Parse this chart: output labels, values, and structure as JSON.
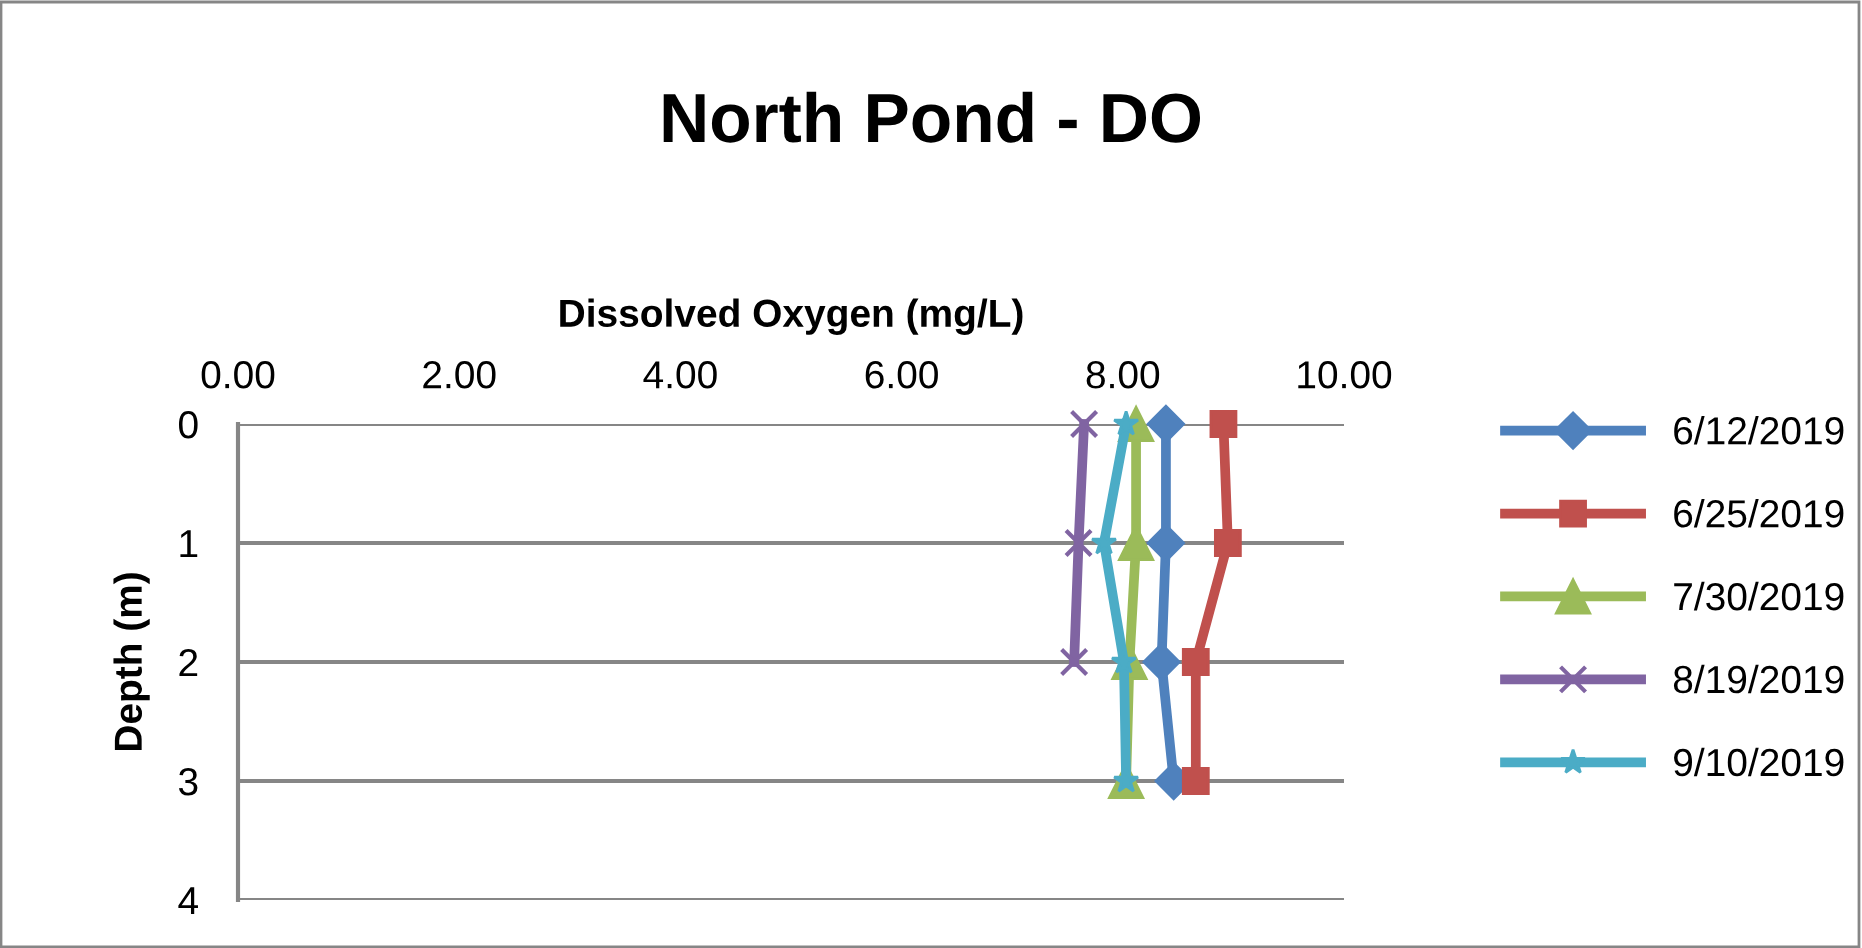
{
  "chart_data": {
    "type": "line",
    "title": "North Pond - DO",
    "xlabel": "Dissolved Oxygen (mg/L)",
    "ylabel": "Depth (m)",
    "xlim": [
      0,
      10
    ],
    "xticks": [
      {
        "value": 0,
        "label": "0.00"
      },
      {
        "value": 2,
        "label": "2.00"
      },
      {
        "value": 4,
        "label": "4.00"
      },
      {
        "value": 6,
        "label": "6.00"
      },
      {
        "value": 8,
        "label": "8.00"
      },
      {
        "value": 10,
        "label": "10.00"
      }
    ],
    "ylim": [
      4,
      0
    ],
    "yticks": [
      0,
      1,
      2,
      3,
      4
    ],
    "grid": "y",
    "legend": "right",
    "series": [
      {
        "name": "6/12/2019",
        "color": "#4f81bd",
        "marker": "diamond",
        "x": [
          8.39,
          8.39,
          8.35,
          8.46
        ],
        "values": [
          0,
          1,
          2,
          3
        ]
      },
      {
        "name": "6/25/2019",
        "color": "#c0504d",
        "marker": "square",
        "x": [
          8.91,
          8.95,
          8.66,
          8.66
        ],
        "values": [
          0,
          1,
          2,
          3
        ]
      },
      {
        "name": "7/30/2019",
        "color": "#9bbb59",
        "marker": "triangle",
        "x": [
          8.12,
          8.12,
          8.06,
          8.03
        ],
        "values": [
          0,
          1,
          2,
          3
        ]
      },
      {
        "name": "8/19/2019",
        "color": "#8064a2",
        "marker": "cross",
        "x": [
          7.65,
          7.6,
          7.56
        ],
        "values": [
          0,
          1,
          2
        ]
      },
      {
        "name": "9/10/2019",
        "color": "#4bacc6",
        "marker": "star",
        "x": [
          8.03,
          7.83,
          8.01,
          8.03
        ],
        "values": [
          0,
          1,
          2,
          3
        ]
      }
    ]
  }
}
